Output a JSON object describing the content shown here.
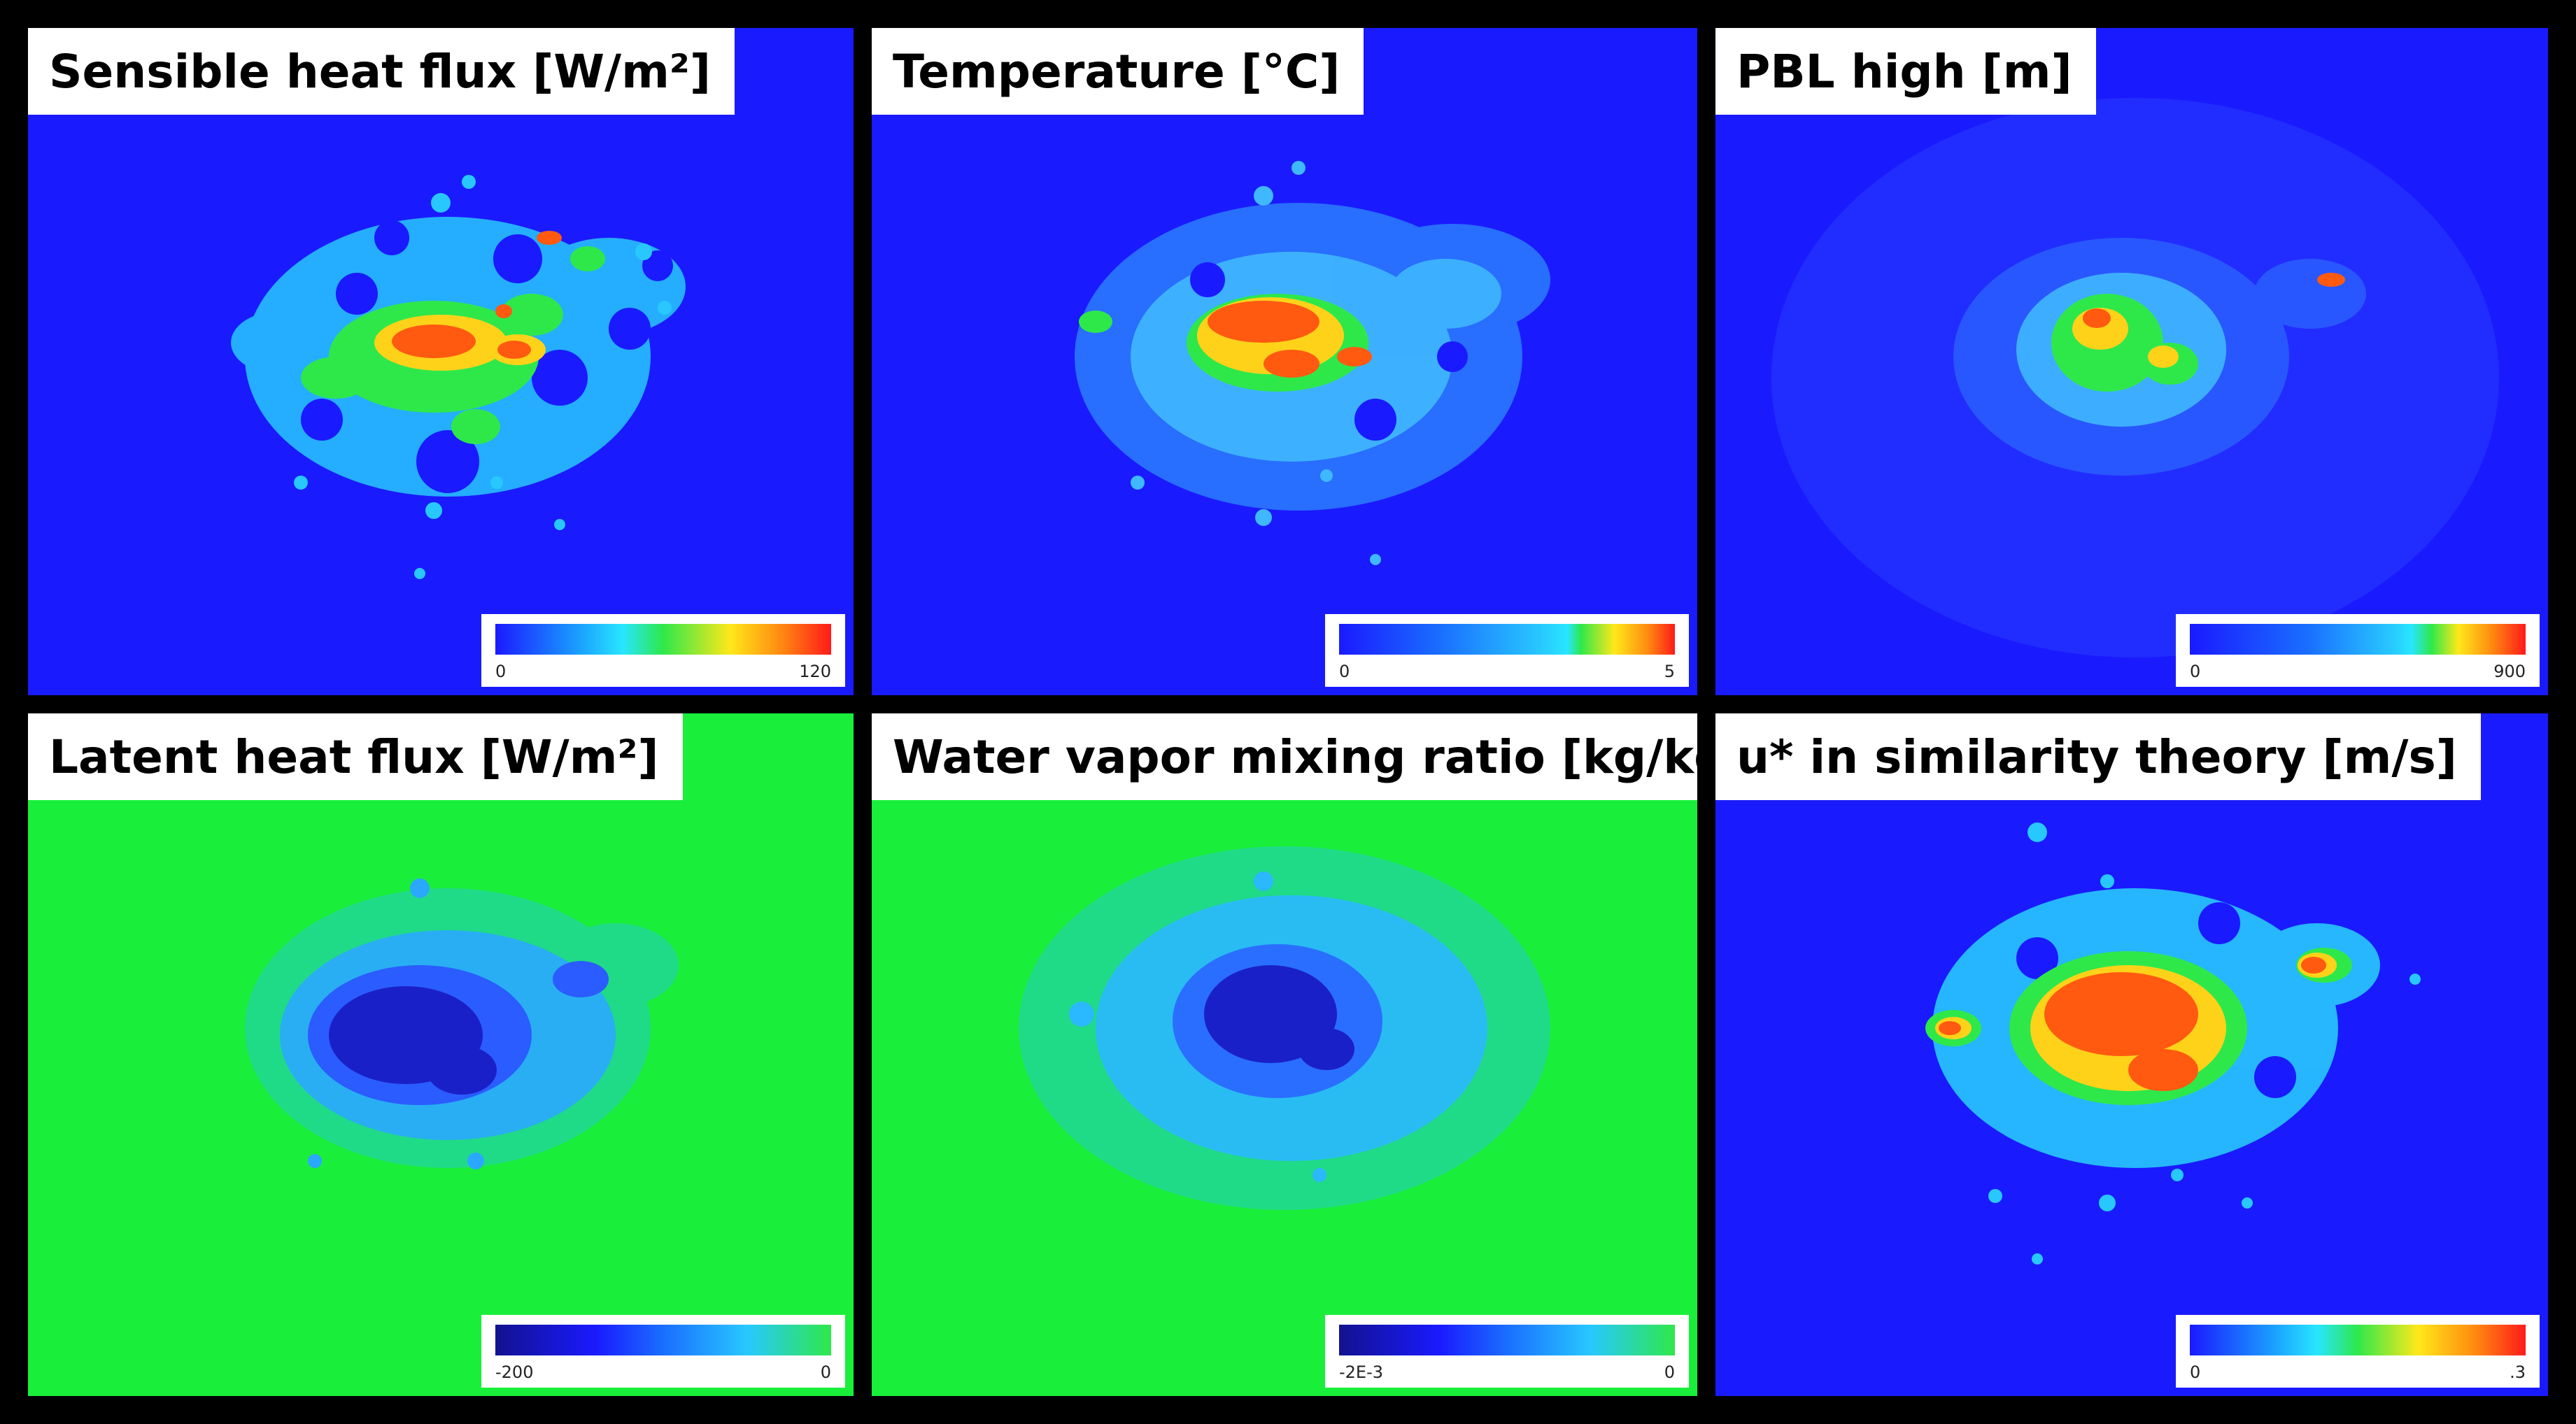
{
  "colors": {
    "low": "#1a1aff",
    "green": "#19ef3a",
    "separator": "#000000"
  },
  "panels": [
    {
      "title": "Sensible heat flux [W/m²]",
      "cbar_min": "0",
      "cbar_max": "120",
      "background": "blue",
      "style": "hot"
    },
    {
      "title": "Temperature [°C]",
      "cbar_min": "0",
      "cbar_max": "5",
      "background": "blue",
      "style": "warm"
    },
    {
      "title": "PBL high [m]",
      "cbar_min": "0",
      "cbar_max": "900",
      "background": "blue",
      "style": "pbl"
    },
    {
      "title": "Latent heat flux [W/m²]",
      "cbar_min": "-200",
      "cbar_max": "0",
      "background": "green",
      "style": "dry"
    },
    {
      "title": "Water vapor mixing ratio [kg/kg]",
      "cbar_min": "-2E-3",
      "cbar_max": "0",
      "background": "green",
      "style": "dry2"
    },
    {
      "title": "u* in similarity theory [m/s]",
      "cbar_min": "0",
      "cbar_max": ".3",
      "background": "blue",
      "style": "ustar"
    }
  ]
}
